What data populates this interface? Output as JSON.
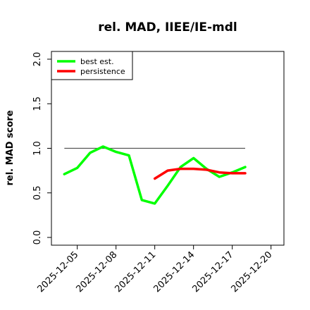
{
  "chart_data": {
    "type": "line",
    "title": "rel. MAD, IIEE/IE-mdl",
    "ylabel": "rel. MAD score",
    "xlabel": "",
    "ylim": [
      0.0,
      2.0
    ],
    "xlim": [
      "2025-12-03",
      "2025-12-21"
    ],
    "yticks": [
      0.0,
      0.5,
      1.0,
      1.5,
      2.0
    ],
    "ytick_labels": [
      "0.0",
      "0.5",
      "1.0",
      "1.5",
      "2.0"
    ],
    "xticks": [
      "2025-12-05",
      "2025-12-08",
      "2025-12-11",
      "2025-12-14",
      "2025-12-17",
      "2025-12-20"
    ],
    "xtick_labels": [
      "2025-12-05",
      "2025-12-08",
      "2025-12-11",
      "2025-12-14",
      "2025-12-17",
      "2025-12-20"
    ],
    "legend_position": "top-left",
    "grid": false,
    "reference_line": {
      "y": 1.0,
      "x_start": "2025-12-04",
      "x_end": "2025-12-18",
      "color": "#555555"
    },
    "series": [
      {
        "name": "best est.",
        "color": "#00ff00",
        "points": [
          {
            "x": "2025-12-04",
            "y": 0.71
          },
          {
            "x": "2025-12-05",
            "y": 0.78
          },
          {
            "x": "2025-12-06",
            "y": 0.95
          },
          {
            "x": "2025-12-07",
            "y": 1.02
          },
          {
            "x": "2025-12-08",
            "y": 0.96
          },
          {
            "x": "2025-12-09",
            "y": 0.92
          },
          {
            "x": "2025-12-10",
            "y": 0.42
          },
          {
            "x": "2025-12-11",
            "y": 0.38
          },
          {
            "x": "2025-12-12",
            "y": 0.58
          },
          {
            "x": "2025-12-13",
            "y": 0.79
          },
          {
            "x": "2025-12-14",
            "y": 0.89
          },
          {
            "x": "2025-12-15",
            "y": 0.77
          },
          {
            "x": "2025-12-16",
            "y": 0.68
          },
          {
            "x": "2025-12-17",
            "y": 0.73
          },
          {
            "x": "2025-12-18",
            "y": 0.79
          }
        ]
      },
      {
        "name": "persistence",
        "color": "#ff0000",
        "points": [
          {
            "x": "2025-12-11",
            "y": 0.66
          },
          {
            "x": "2025-12-12",
            "y": 0.75
          },
          {
            "x": "2025-12-13",
            "y": 0.77
          },
          {
            "x": "2025-12-14",
            "y": 0.77
          },
          {
            "x": "2025-12-15",
            "y": 0.76
          },
          {
            "x": "2025-12-16",
            "y": 0.73
          },
          {
            "x": "2025-12-17",
            "y": 0.72
          },
          {
            "x": "2025-12-18",
            "y": 0.72
          }
        ]
      }
    ]
  }
}
